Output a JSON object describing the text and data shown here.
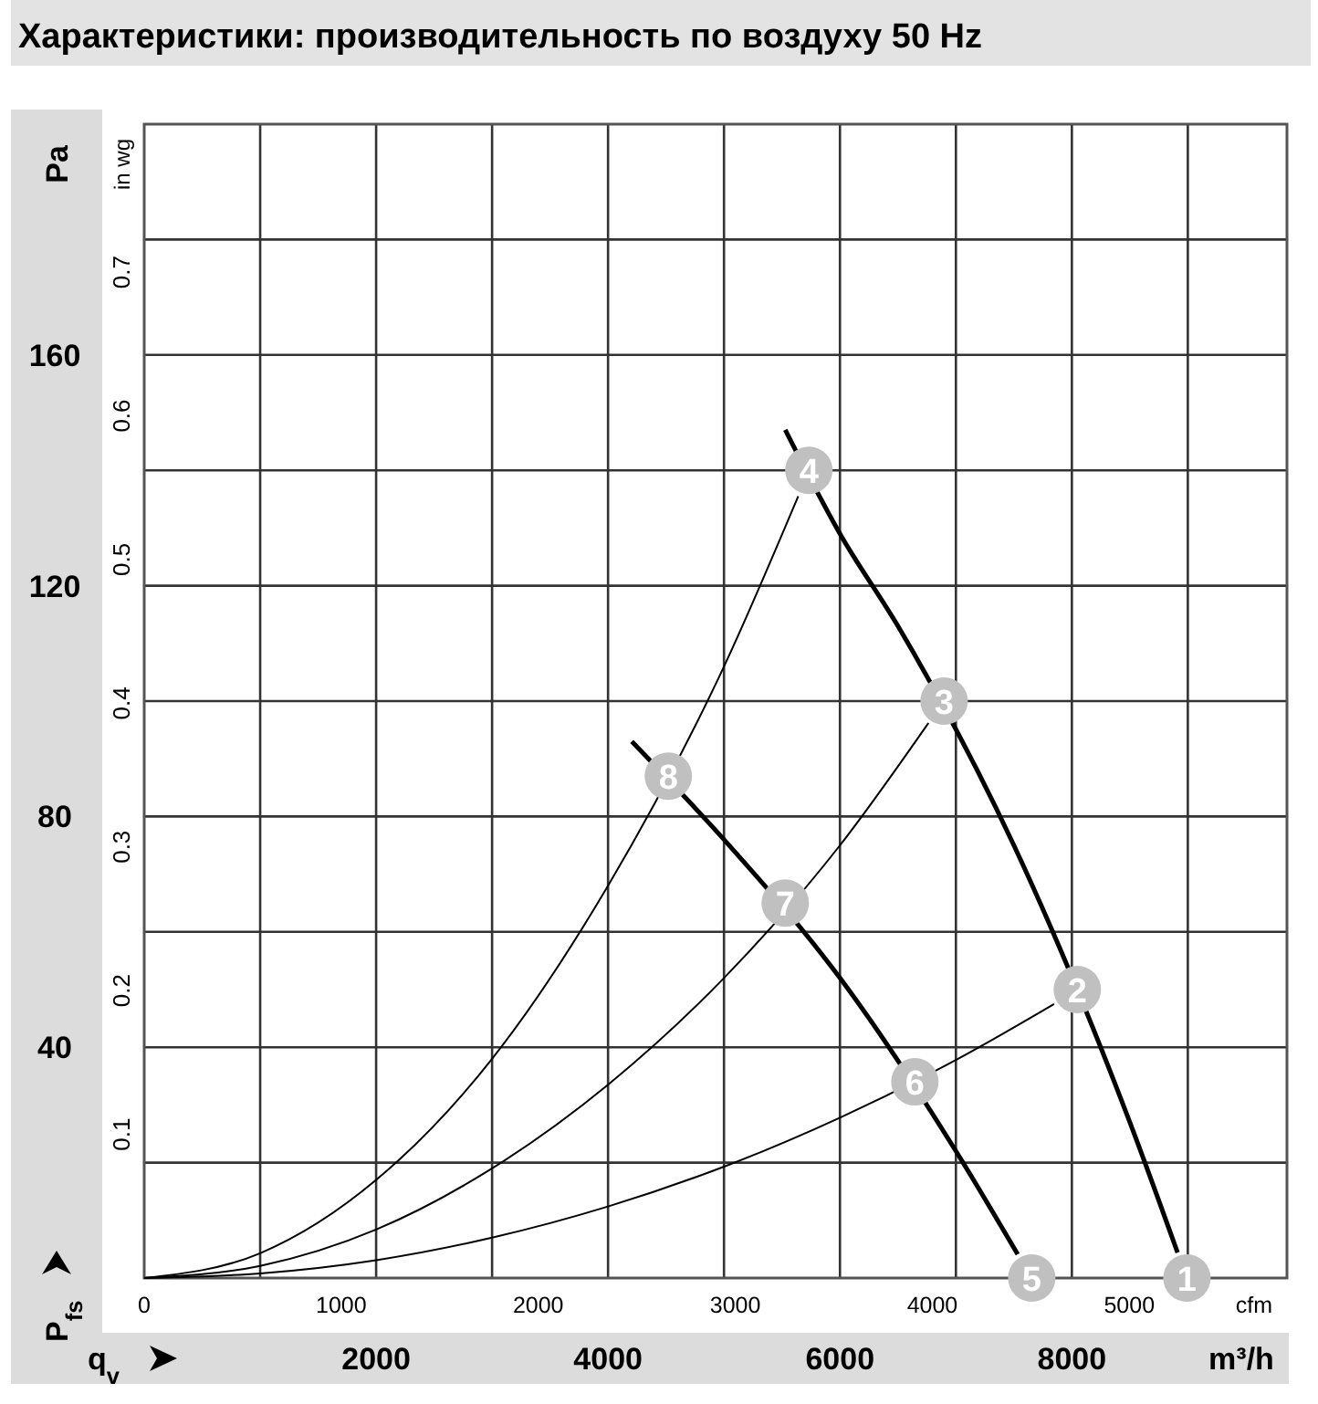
{
  "chart_data": {
    "type": "line",
    "title": "Характеристики: производительность по воздуху 50 Hz",
    "xlabel": "m³/h",
    "ylabel": "Pa",
    "y2label": "in wg",
    "x2label": "cfm",
    "xlim": [
      0,
      9855
    ],
    "xticks": [
      {
        "value": 1000,
        "label": null
      },
      2000,
      {
        "value": 3000,
        "label": null
      },
      4000,
      {
        "value": 5000,
        "label": null
      },
      6000,
      {
        "value": 7000,
        "label": null
      },
      8000,
      {
        "value": 9000,
        "label": null
      }
    ],
    "ylim": [
      0,
      200
    ],
    "yticks": [
      {
        "value": 20,
        "label": null
      },
      40,
      {
        "value": 60,
        "label": null
      },
      80,
      {
        "value": 100,
        "label": null
      },
      120,
      {
        "value": 140,
        "label": null
      },
      160,
      {
        "value": 180,
        "label": null
      }
    ],
    "y2lim": [
      0,
      0.803
    ],
    "y2ticks": [
      0.1,
      0.2,
      0.3,
      0.4,
      0.5,
      0.6,
      0.7
    ],
    "x2lim": [
      0,
      5800
    ],
    "x2ticks": [
      0,
      1000,
      2000,
      3000,
      4000,
      5000
    ],
    "grid": true,
    "series": [
      {
        "color": "#000000",
        "x": [
          5528,
          6000,
          6500,
          7500,
          8500,
          8912
        ],
        "values": [
          147,
          129,
          113,
          75,
          27,
          4.4
        ]
      },
      {
        "color": "#000000",
        "x": [
          4205,
          5000,
          6000,
          7000,
          7533
        ],
        "values": [
          93,
          76,
          52,
          22,
          4.1
        ]
      },
      {
        "color": "#000000",
        "x": [
          0,
          1000,
          2000,
          3000,
          4000,
          5000,
          5640
        ],
        "values": [
          0,
          4.3,
          17,
          38,
          68,
          106,
          135.5
        ]
      },
      {
        "color": "#000000",
        "x": [
          0,
          1000,
          2000,
          3000,
          4000,
          5000,
          6000,
          6763
        ],
        "values": [
          0,
          2.1,
          8.4,
          19,
          33.5,
          52,
          75,
          96.2
        ]
      },
      {
        "color": "#000000",
        "x": [
          0,
          1000,
          2000,
          3000,
          4000,
          5000,
          6000,
          7000,
          7847
        ],
        "values": [
          0,
          0.8,
          3.1,
          7,
          12.4,
          19.3,
          27.8,
          37.8,
          47.5
        ]
      },
      {
        "type": "scatter",
        "marker": "circle",
        "color": "#c0c0c0",
        "x": [
          8992,
          8047,
          6898,
          5732,
          7654,
          6646,
          5528,
          4520
        ],
        "values": [
          0,
          50,
          100,
          140,
          0,
          34,
          65,
          87
        ]
      }
    ],
    "annotations": [
      {
        "text": "1",
        "x": 8992,
        "y": 0
      },
      {
        "text": "2",
        "x": 8047,
        "y": 50
      },
      {
        "text": "3",
        "x": 6898,
        "y": 100
      },
      {
        "text": "4",
        "x": 5732,
        "y": 140
      },
      {
        "text": "5",
        "x": 7654,
        "y": 0
      },
      {
        "text": "6",
        "x": 6646,
        "y": 34
      },
      {
        "text": "7",
        "x": 5528,
        "y": 65
      },
      {
        "text": "8",
        "x": 4520,
        "y": 87
      },
      "P$_{fs}$",
      "q$_{v}$"
    ]
  }
}
